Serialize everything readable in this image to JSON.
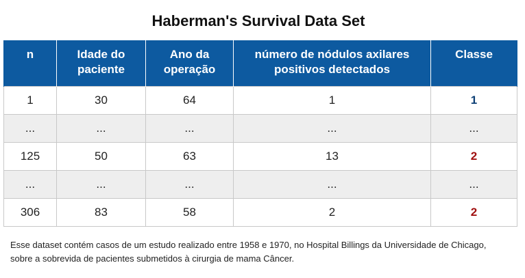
{
  "title": "Haberman's Survival Data Set",
  "colors": {
    "header_bg": "#0d5aa0",
    "header_text": "#ffffff",
    "class_1": "#0d3f75",
    "class_2": "#a01010",
    "ellipsis_row_bg": "#eeeeee"
  },
  "table": {
    "columns": [
      "n",
      "Idade do paciente",
      "Ano da operação",
      "número de nódulos axilares positivos detectados",
      "Classe"
    ],
    "rows": [
      {
        "n": "1",
        "idade": "30",
        "ano": "64",
        "nodulos": "1",
        "classe": "1"
      },
      {
        "n": "...",
        "idade": "...",
        "ano": "...",
        "nodulos": "...",
        "classe": "..."
      },
      {
        "n": "125",
        "idade": "50",
        "ano": "63",
        "nodulos": "13",
        "classe": "2"
      },
      {
        "n": "...",
        "idade": "...",
        "ano": "...",
        "nodulos": "...",
        "classe": "..."
      },
      {
        "n": "306",
        "idade": "83",
        "ano": "58",
        "nodulos": "2",
        "classe": "2"
      }
    ]
  },
  "footnote": {
    "line1": "Esse dataset contém casos de um estudo realizado entre 1958 e 1970, no Hospital Billings da Universidade de Chicago,",
    "line2": "sobre a sobrevida de pacientes submetidos à cirurgia de mama Câncer."
  }
}
